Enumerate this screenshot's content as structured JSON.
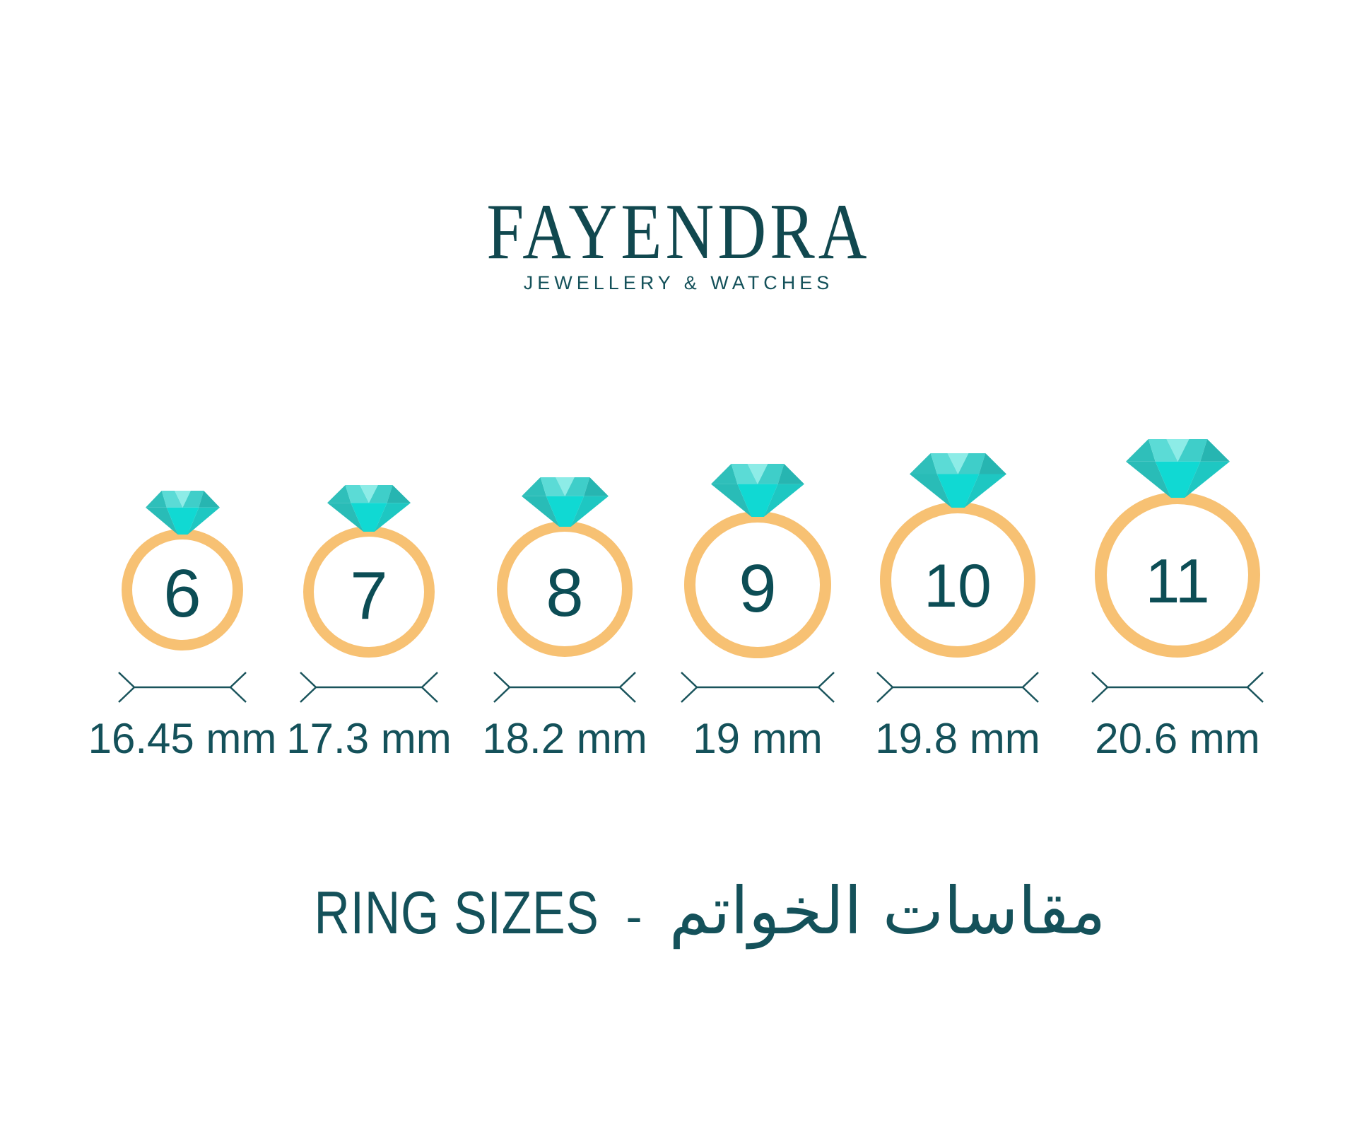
{
  "brand": {
    "name": "FAYENDRA",
    "tagline": "JEWELLERY & WATCHES"
  },
  "rings": [
    {
      "size": "6",
      "diameter_label": "16.45 mm"
    },
    {
      "size": "7",
      "diameter_label": "17.3 mm"
    },
    {
      "size": "8",
      "diameter_label": "18.2 mm"
    },
    {
      "size": "9",
      "diameter_label": "19 mm"
    },
    {
      "size": "10",
      "diameter_label": "19.8 mm"
    },
    {
      "size": "11",
      "diameter_label": "20.6 mm"
    }
  ],
  "footer": {
    "title_en": "RING SIZES",
    "separator": "-",
    "title_ar": "مقاسات الخواتم"
  },
  "colors": {
    "text_dark_teal": "#14515A",
    "number_teal": "#0C4D55",
    "logo_teal": "#11484F",
    "band_gold": "#F7C173",
    "dimension_line": "#1A545C",
    "diamond": {
      "crown_left": "#2FBFBA",
      "crown_center_left": "#5BDBD6",
      "crown_center": "#8DECE7",
      "crown_center_right": "#3FCEC9",
      "crown_right": "#27B5B1",
      "pavilion_left": "#29BCB7",
      "pavilion_center": "#10D9D3",
      "pavilion_right": "#1EC7C2"
    }
  }
}
